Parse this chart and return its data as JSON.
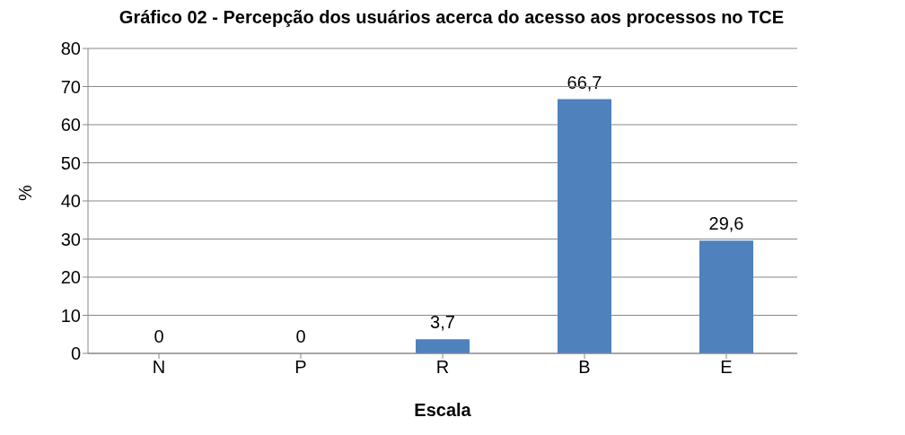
{
  "chart_data": {
    "type": "bar",
    "title": "Gráfico 02 - Percepção dos usuários acerca do acesso aos processos no TCE",
    "categories": [
      "N",
      "P",
      "R",
      "B",
      "E"
    ],
    "values": [
      0,
      0,
      3.7,
      66.7,
      29.6
    ],
    "color": "#4f81bd",
    "ylim": [
      0,
      80
    ],
    "yticks": [
      0,
      10,
      20,
      30,
      40,
      50,
      60,
      70,
      80
    ],
    "grid": "y",
    "value_labels": [
      "0",
      "0",
      "3,7",
      "66,7",
      "29,6"
    ],
    "xlabel": "Escala",
    "ylabel": "%"
  }
}
